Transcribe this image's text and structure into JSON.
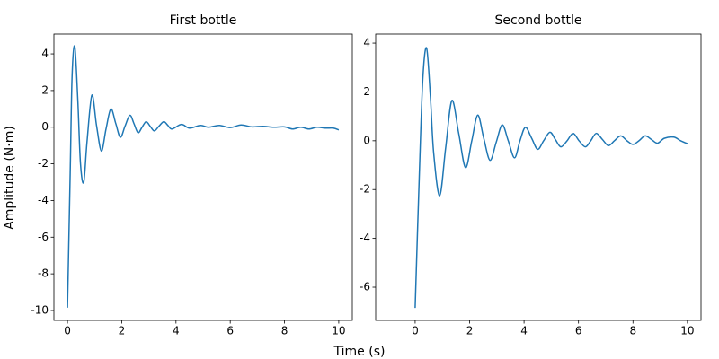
{
  "chart_data": [
    {
      "type": "line",
      "title": "First bottle",
      "xlabel": "Time (s)",
      "ylabel": "Amplitude (N·m)",
      "x": [
        0,
        0.1,
        0.17,
        0.27,
        0.38,
        0.48,
        0.6,
        0.72,
        0.9,
        1.07,
        1.25,
        1.42,
        1.6,
        1.78,
        1.95,
        2.12,
        2.3,
        2.45,
        2.6,
        2.75,
        2.9,
        3.05,
        3.2,
        3.37,
        3.55,
        3.7,
        3.85,
        4.2,
        4.5,
        4.9,
        5.2,
        5.6,
        6.0,
        6.4,
        6.8,
        7.2,
        7.6,
        8.0,
        8.3,
        8.6,
        8.9,
        9.2,
        9.5,
        9.8,
        10
      ],
      "series": [
        {
          "color": "#1f77b4",
          "values": [
            -9.85,
            -2.5,
            2.8,
            4.4,
            1.5,
            -2.0,
            -3.0,
            -0.8,
            1.75,
            0.1,
            -1.3,
            -0.1,
            1.0,
            0.2,
            -0.55,
            0.05,
            0.65,
            0.2,
            -0.3,
            0.0,
            0.3,
            0.05,
            -0.2,
            0.05,
            0.3,
            0.1,
            -0.1,
            0.15,
            -0.05,
            0.1,
            0.0,
            0.1,
            -0.02,
            0.12,
            0.02,
            0.05,
            0.0,
            0.02,
            -0.1,
            0.0,
            -0.1,
            0.0,
            -0.05,
            -0.05,
            -0.15
          ]
        }
      ],
      "xlim": [
        -0.5,
        10.5
      ],
      "ylim": [
        -10.54,
        5.08
      ],
      "xticks": [
        0,
        2,
        4,
        6,
        8,
        10
      ],
      "yticks": [
        -10,
        -8,
        -6,
        -4,
        -2,
        0,
        2,
        4
      ]
    },
    {
      "type": "line",
      "title": "Second bottle",
      "x": [
        0,
        0.15,
        0.28,
        0.42,
        0.56,
        0.68,
        0.9,
        1.12,
        1.35,
        1.6,
        1.85,
        2.08,
        2.3,
        2.52,
        2.75,
        2.98,
        3.2,
        3.42,
        3.65,
        3.85,
        4.05,
        4.28,
        4.5,
        4.72,
        4.95,
        5.15,
        5.35,
        5.58,
        5.8,
        6.02,
        6.25,
        6.45,
        6.65,
        6.88,
        7.1,
        7.32,
        7.55,
        7.78,
        8.0,
        8.22,
        8.45,
        8.68,
        8.9,
        9.15,
        9.5,
        9.75,
        10
      ],
      "series": [
        {
          "color": "#1f77b4",
          "values": [
            -6.85,
            -1.5,
            2.5,
            3.8,
            1.8,
            -0.5,
            -2.25,
            -0.3,
            1.65,
            0.3,
            -1.1,
            0.0,
            1.05,
            0.1,
            -0.8,
            -0.05,
            0.65,
            0.0,
            -0.7,
            0.0,
            0.55,
            0.1,
            -0.35,
            0.0,
            0.35,
            0.05,
            -0.25,
            0.0,
            0.3,
            0.0,
            -0.25,
            0.0,
            0.3,
            0.05,
            -0.2,
            0.0,
            0.2,
            0.0,
            -0.15,
            0.0,
            0.2,
            0.05,
            -0.1,
            0.1,
            0.15,
            0.0,
            -0.12
          ]
        }
      ],
      "xlim": [
        -1.45,
        10.5
      ],
      "ylim": [
        -7.36,
        4.37
      ],
      "xticks": [
        0,
        2,
        4,
        6,
        8,
        10
      ],
      "yticks": [
        -6,
        -4,
        -2,
        0,
        2,
        4
      ]
    }
  ]
}
